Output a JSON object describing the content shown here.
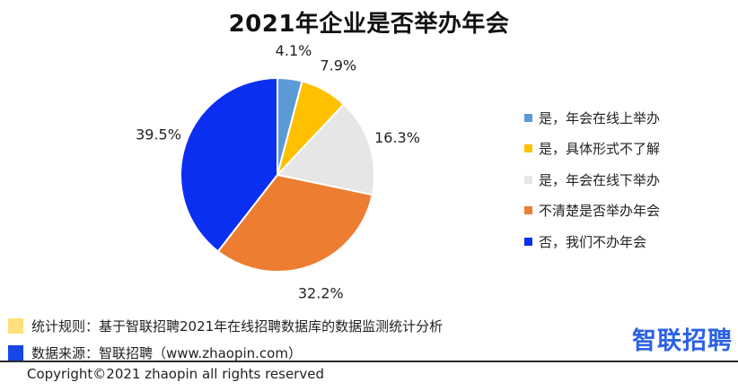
{
  "chart_data": {
    "type": "pie",
    "title": "2021年企业是否举办年会",
    "categories": [
      "是，年会在线上举办",
      "是，具体形式不了解",
      "是，年会在线下举办",
      "不清楚是否举办年会",
      "否，我们不办年会"
    ],
    "values": [
      4.1,
      7.9,
      16.3,
      32.2,
      39.5
    ],
    "value_labels": [
      "4.1%",
      "7.9%",
      "16.3%",
      "32.2%",
      "39.5%"
    ],
    "colors": [
      "#5b9bd5",
      "#ffc000",
      "#e6e6e6",
      "#ed7d31",
      "#0a2ff0"
    ],
    "legend_position": "right",
    "start": "12 o'clock",
    "direction": "clockwise"
  },
  "legend": {
    "items": [
      {
        "label": "是，年会在线上举办",
        "color": "#5b9bd5"
      },
      {
        "label": "是，具体形式不了解",
        "color": "#ffc000"
      },
      {
        "label": "是，年会在线下举办",
        "color": "#e6e6e6"
      },
      {
        "label": "不清楚是否举办年会",
        "color": "#ed7d31"
      },
      {
        "label": "否，我们不办年会",
        "color": "#0a2ff0"
      }
    ]
  },
  "notes": {
    "rule": {
      "text": "统计规则：基于智联招聘2021年在线招聘数据库的数据监测统计分析",
      "color": "#ffe07a"
    },
    "source": {
      "text": "数据来源：智联招聘（www.zhaopin.com）",
      "color": "#1646e8"
    }
  },
  "brand": {
    "logo_text": "智联招聘",
    "color": "#2b62e6"
  },
  "footer": {
    "copyright": "Copyright©2021 zhaopin all rights reserved"
  }
}
